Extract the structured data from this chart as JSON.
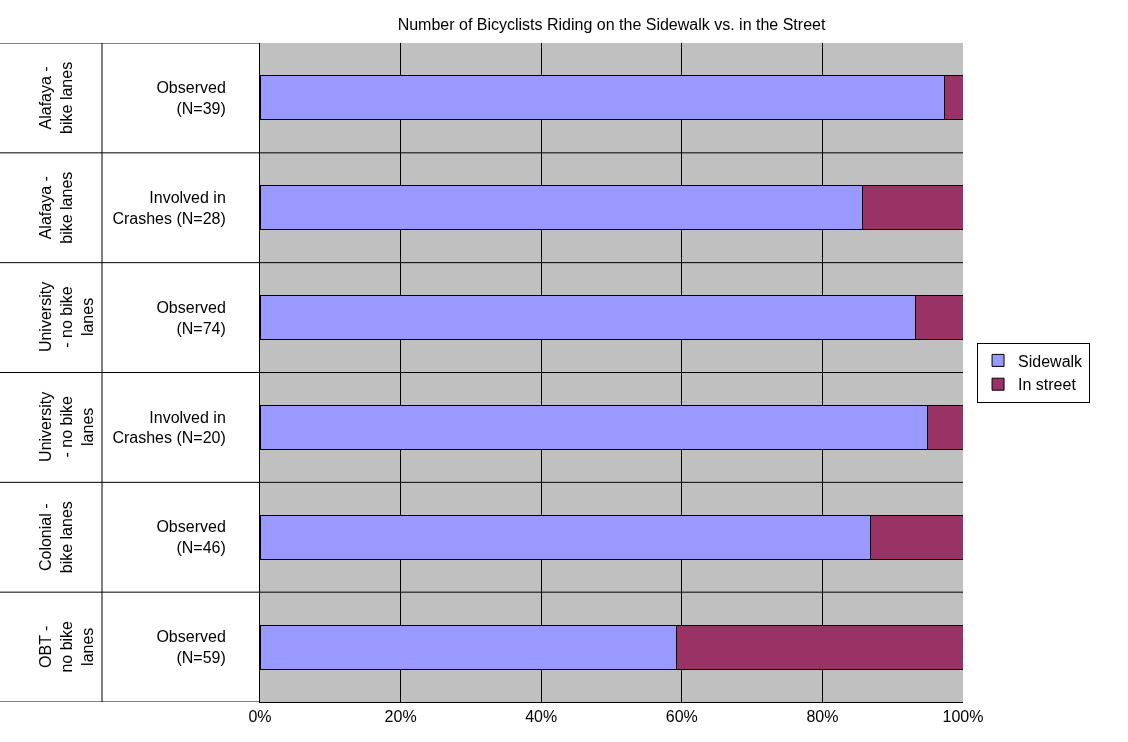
{
  "chart_data": {
    "type": "bar",
    "orientation": "horizontal",
    "stacked": true,
    "title": "Number of Bicyclists Riding on the Sidewalk vs. in the Street",
    "categories": [
      "Observed\n(N=39)",
      "Involved in\nCrashes (N=28)",
      "Observed\n(N=74)",
      "Involved in\nCrashes (N=20)",
      "Observed\n(N=46)",
      "Observed\n(N=59)"
    ],
    "series": [
      {
        "name": "Sidewalk",
        "color": "#9999ff",
        "values": [
          97.4,
          85.7,
          93.2,
          95.0,
          86.9,
          59.3
        ]
      },
      {
        "name": "In street",
        "color": "#993366",
        "values": [
          2.6,
          14.3,
          6.8,
          5.0,
          13.1,
          40.7
        ]
      }
    ],
    "annotations": [
      "Alafaya -\nbike lanes",
      "Alafaya -\nbike lanes",
      "University\n- no bike\nlanes",
      "University\n- no bike\nlanes",
      "Colonial -\nbike lanes",
      "OBT -\nno bike\nlanes"
    ],
    "xlim": [
      0,
      100
    ],
    "xticks": [
      {
        "value": 0,
        "label": "0%"
      },
      {
        "value": 20,
        "label": "20%"
      },
      {
        "value": 40,
        "label": "40%"
      },
      {
        "value": 60,
        "label": "60%"
      },
      {
        "value": 80,
        "label": "80%"
      },
      {
        "value": 100,
        "label": "100%"
      }
    ],
    "grid": true,
    "legend": "right"
  }
}
